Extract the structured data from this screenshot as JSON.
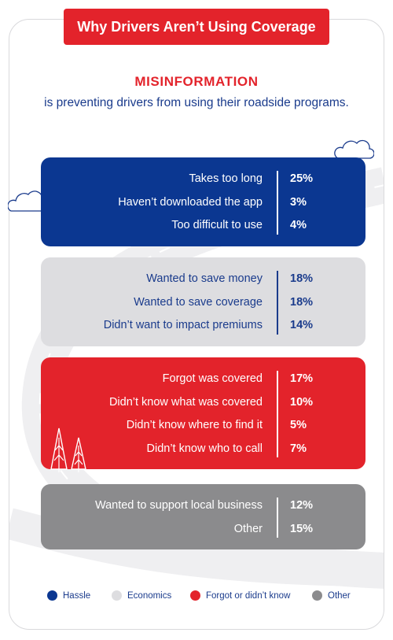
{
  "title": "Why Drivers Aren’t Using Coverage",
  "headline": "MISINFORMATION",
  "subline": "is preventing drivers from using their roadside programs.",
  "colors": {
    "accent_red": "#e3232b",
    "navy": "#0b3791",
    "light_gray": "#dddde0",
    "medium_gray": "#8b8b8d"
  },
  "chart_data": {
    "type": "table",
    "unit": "%",
    "groups": [
      {
        "name": "Hassle",
        "color": "#0b3791",
        "items": [
          {
            "label": "Takes too long",
            "value": 25
          },
          {
            "label": "Haven’t downloaded the app",
            "value": 3
          },
          {
            "label": "Too difficult to use",
            "value": 4
          }
        ]
      },
      {
        "name": "Economics",
        "color": "#dddde0",
        "items": [
          {
            "label": "Wanted to save money",
            "value": 18
          },
          {
            "label": "Wanted to save coverage",
            "value": 18
          },
          {
            "label": "Didn’t want to impact premiums",
            "value": 14
          }
        ]
      },
      {
        "name": "Forgot or didn’t know",
        "color": "#e3232b",
        "items": [
          {
            "label": "Forgot was covered",
            "value": 17
          },
          {
            "label": "Didn’t know what was covered",
            "value": 10
          },
          {
            "label": "Didn’t know where to find it",
            "value": 5
          },
          {
            "label": "Didn’t know who to call",
            "value": 7
          }
        ]
      },
      {
        "name": "Other",
        "color": "#8b8b8d",
        "items": [
          {
            "label": "Wanted to support local business",
            "value": 12
          },
          {
            "label": "Other",
            "value": 15
          }
        ]
      }
    ],
    "legend": [
      "Hassle",
      "Economics",
      "Forgot or didn’t know",
      "Other"
    ],
    "legend_position": "bottom"
  }
}
